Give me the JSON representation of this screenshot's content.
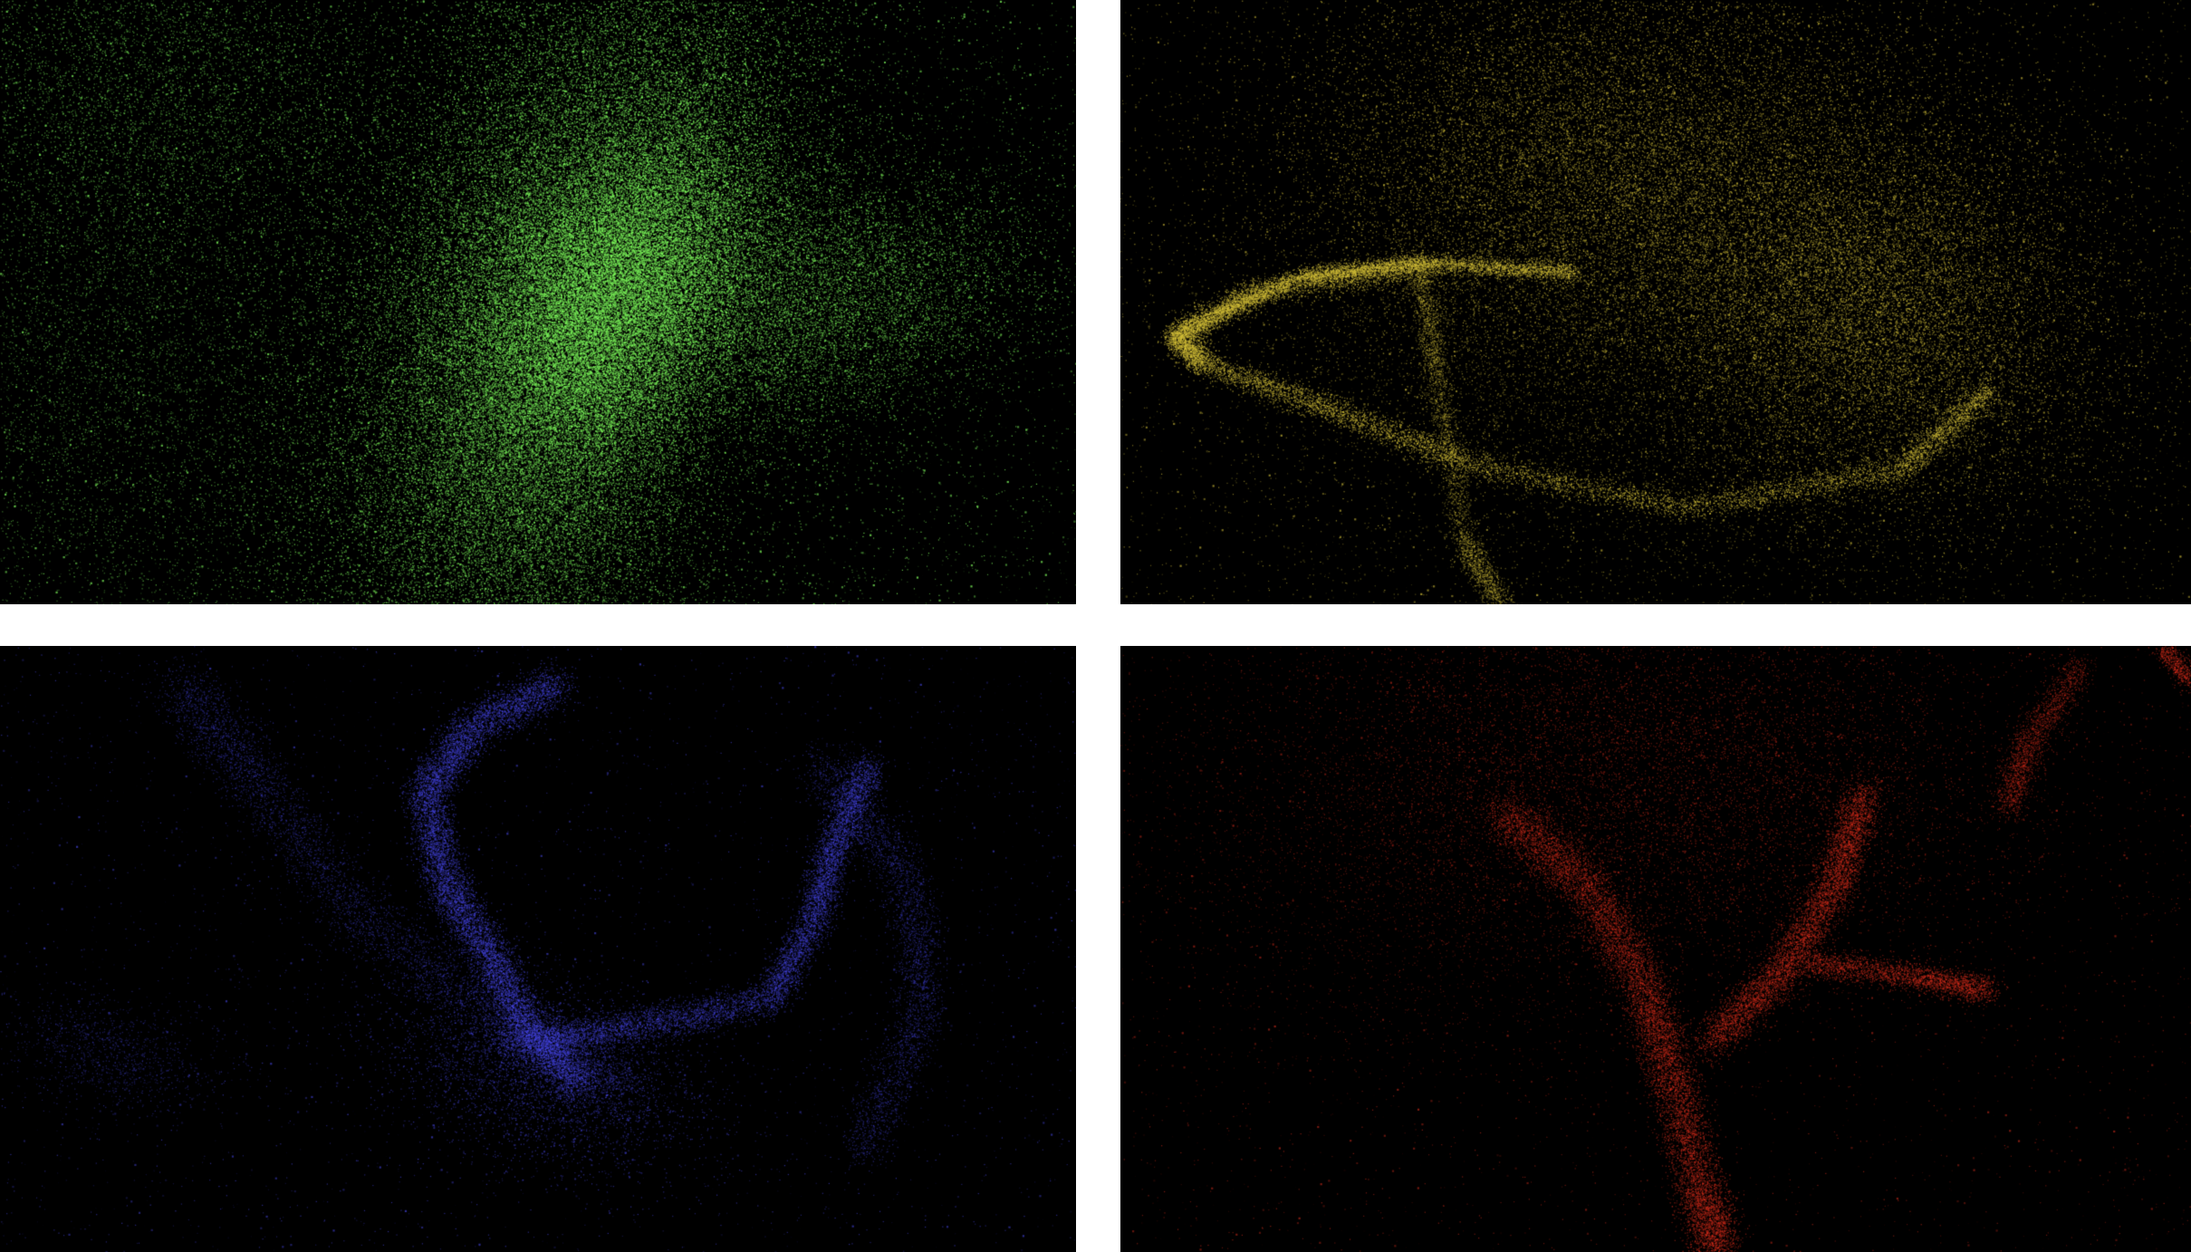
{
  "panels": [
    {
      "id": "panel-tl",
      "name": "green-particle-panel",
      "color": "#7CF55A"
    },
    {
      "id": "panel-tr",
      "name": "yellow-particle-panel",
      "color": "#D6C23A"
    },
    {
      "id": "panel-bl",
      "name": "blue-particle-panel",
      "color": "#4A4AF0"
    },
    {
      "id": "panel-br",
      "name": "red-particle-panel",
      "color": "#E0301E"
    }
  ]
}
